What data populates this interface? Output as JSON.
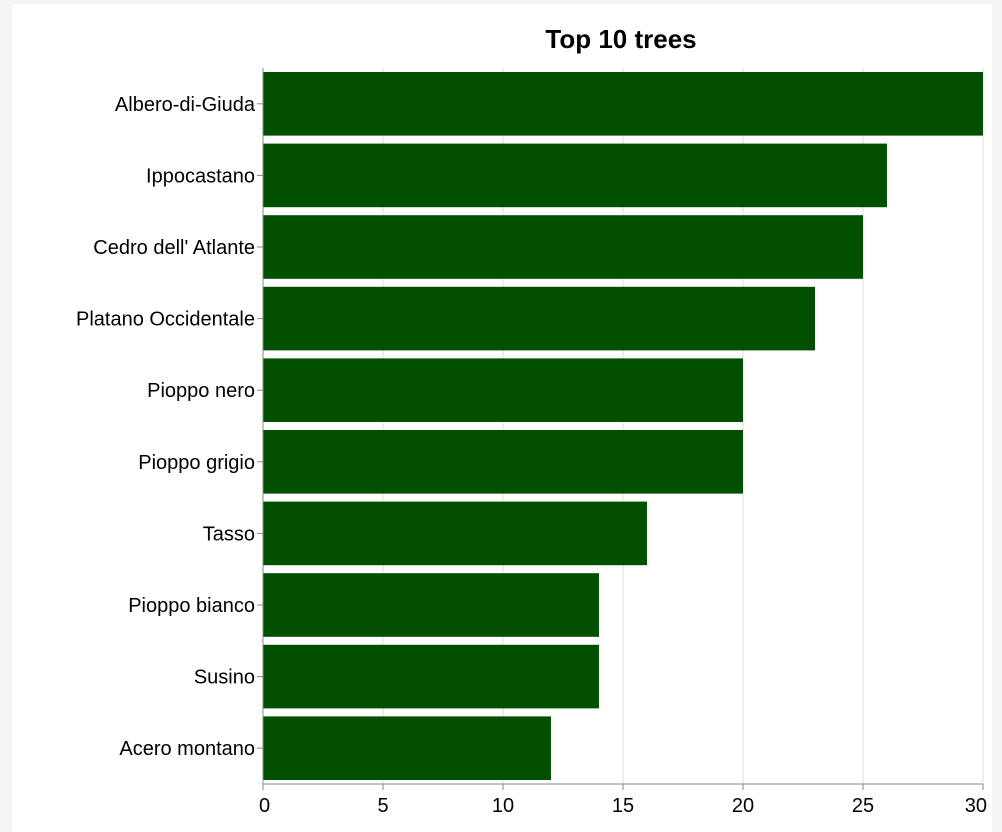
{
  "chart_data": {
    "type": "bar",
    "orientation": "horizontal",
    "title": "Top 10 trees",
    "xlabel": "",
    "ylabel": "",
    "categories": [
      "Albero-di-Giuda",
      "Ippocastano",
      "Cedro dell' Atlante",
      "Platano Occidentale",
      "Pioppo nero",
      "Pioppo grigio",
      "Tasso",
      "Pioppo bianco",
      "Susino",
      "Acero montano"
    ],
    "values": [
      30,
      26,
      25,
      23,
      20,
      20,
      16,
      14,
      14,
      12
    ],
    "xlim": [
      0,
      30
    ],
    "xticks": [
      0,
      5,
      10,
      15,
      20,
      25,
      30
    ],
    "grid": true,
    "legend": "none",
    "bar_color": "#005000",
    "grid_color": "#dddddd",
    "axis_color": "#888888"
  }
}
